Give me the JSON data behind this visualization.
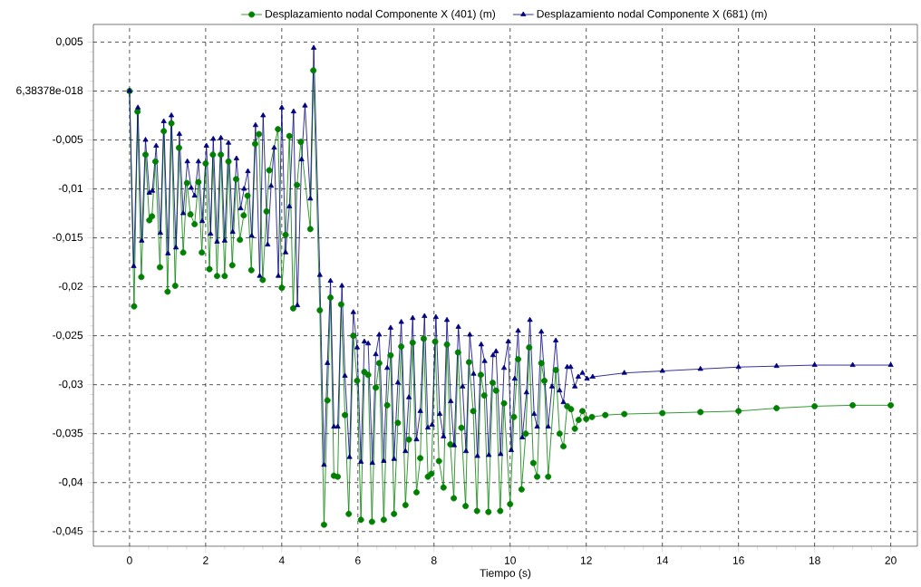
{
  "chart_data": {
    "type": "line",
    "xlabel": "Tiempo (s)",
    "xlim": [
      -0.95,
      20.7
    ],
    "ylim": [
      -0.0465,
      0.0068
    ],
    "xticks": [
      0,
      2,
      4,
      6,
      8,
      10,
      12,
      14,
      16,
      18,
      20
    ],
    "yticks": [
      {
        "value": 0.005,
        "label": "0,005"
      },
      {
        "value": 0,
        "label": "6,38378e-018"
      },
      {
        "value": -0.005,
        "label": "-0,005"
      },
      {
        "value": -0.01,
        "label": "-0,01"
      },
      {
        "value": -0.015,
        "label": "-0,015"
      },
      {
        "value": -0.02,
        "label": "-0,02"
      },
      {
        "value": -0.025,
        "label": "-0,025"
      },
      {
        "value": -0.03,
        "label": "-0,03"
      },
      {
        "value": -0.035,
        "label": "-0,035"
      },
      {
        "value": -0.04,
        "label": "-0,04"
      },
      {
        "value": -0.045,
        "label": "-0,045"
      }
    ],
    "grid": true,
    "legend": "top",
    "line_style": "solid",
    "series": [
      {
        "name": "Desplazamiento nodal Componente X (401) (m)",
        "color": "#008000",
        "marker": "circle",
        "x": [
          0,
          0.12,
          0.21,
          0.31,
          0.42,
          0.52,
          0.59,
          0.68,
          0.8,
          0.9,
          1.0,
          1.1,
          1.2,
          1.3,
          1.41,
          1.51,
          1.6,
          1.71,
          1.81,
          1.9,
          2.0,
          2.1,
          2.19,
          2.3,
          2.4,
          2.5,
          2.6,
          2.7,
          2.8,
          2.9,
          3.0,
          3.1,
          3.2,
          3.3,
          3.4,
          3.5,
          3.6,
          3.67,
          3.9,
          4.0,
          4.1,
          4.2,
          4.3,
          4.4,
          4.5,
          4.75,
          4.83,
          5.0,
          5.11,
          5.2,
          5.28,
          5.37,
          5.47,
          5.56,
          5.66,
          5.76,
          5.88,
          5.98,
          6.08,
          6.17,
          6.27,
          6.37,
          6.47,
          6.56,
          6.68,
          6.77,
          6.86,
          6.95,
          7.05,
          7.14,
          7.25,
          7.34,
          7.44,
          7.54,
          7.64,
          7.73,
          7.84,
          7.93,
          8.03,
          8.13,
          8.25,
          8.34,
          8.43,
          8.52,
          8.63,
          8.72,
          8.83,
          8.92,
          9.03,
          9.13,
          9.23,
          9.32,
          9.43,
          9.54,
          9.63,
          9.74,
          9.84,
          10.0,
          10.1,
          10.21,
          10.3,
          10.41,
          10.5,
          10.61,
          10.71,
          10.82,
          10.9,
          11.0,
          11.2,
          11.3,
          11.4,
          11.5,
          11.6,
          11.7,
          11.8,
          11.9,
          12.0,
          12.15,
          12.5,
          13,
          14,
          15,
          16,
          17,
          18,
          19,
          20
        ],
        "values": [
          0,
          -0.022,
          -0.0021,
          -0.019,
          -0.0065,
          -0.0132,
          -0.0128,
          -0.0072,
          -0.018,
          -0.0041,
          -0.0205,
          -0.0033,
          -0.0199,
          -0.0058,
          -0.0165,
          -0.0094,
          -0.0126,
          -0.0136,
          -0.0093,
          -0.0165,
          -0.0074,
          -0.0182,
          -0.0065,
          -0.0189,
          -0.0065,
          -0.0189,
          -0.0072,
          -0.0178,
          -0.009,
          -0.0152,
          -0.0127,
          -0.0107,
          -0.0183,
          -0.0054,
          -0.0044,
          -0.0193,
          -0.0123,
          -0.0081,
          -0.0039,
          -0.0201,
          -0.0147,
          -0.0046,
          -0.0222,
          -0.0096,
          -0.0052,
          -0.0141,
          0.0021,
          -0.0224,
          -0.0443,
          -0.0316,
          -0.0211,
          -0.0393,
          -0.0394,
          -0.0218,
          -0.0331,
          -0.0432,
          -0.025,
          -0.0296,
          -0.0438,
          -0.0287,
          -0.029,
          -0.044,
          -0.0303,
          -0.0278,
          -0.0438,
          -0.0321,
          -0.027,
          -0.0432,
          -0.0339,
          -0.0261,
          -0.0423,
          -0.0356,
          -0.0257,
          -0.041,
          -0.0375,
          -0.0253,
          -0.0394,
          -0.0391,
          -0.0256,
          -0.0378,
          -0.0405,
          -0.0259,
          -0.0361,
          -0.0416,
          -0.0267,
          -0.0344,
          -0.0424,
          -0.0277,
          -0.0327,
          -0.0429,
          -0.029,
          -0.0311,
          -0.043,
          -0.0298,
          -0.0306,
          -0.0429,
          -0.0319,
          -0.0422,
          -0.0333,
          -0.0274,
          -0.0407,
          -0.035,
          -0.0262,
          -0.038,
          -0.0394,
          -0.0278,
          -0.0296,
          -0.0394,
          -0.0285,
          -0.035,
          -0.0363,
          -0.0322,
          -0.0325,
          -0.0345,
          -0.0336,
          -0.0327,
          -0.0335,
          -0.0333,
          -0.0331,
          -0.033,
          -0.0329,
          -0.0328,
          -0.0327,
          -0.0324,
          -0.0322,
          -0.0321,
          -0.0321
        ]
      },
      {
        "name": "Desplazamiento nodal Componente X (681) (m)",
        "color": "#000080",
        "marker": "triangle",
        "x": [
          0,
          0.11,
          0.22,
          0.32,
          0.42,
          0.52,
          0.6,
          0.7,
          0.81,
          0.9,
          1.01,
          1.1,
          1.22,
          1.31,
          1.41,
          1.52,
          1.62,
          1.71,
          1.81,
          1.91,
          2.02,
          2.13,
          2.2,
          2.3,
          2.4,
          2.5,
          2.6,
          2.71,
          2.81,
          2.92,
          3.01,
          3.11,
          3.21,
          3.31,
          3.42,
          3.51,
          3.63,
          3.72,
          3.8,
          3.91,
          4.0,
          4.1,
          4.2,
          4.31,
          4.41,
          4.52,
          4.61,
          4.75,
          4.84,
          5.0,
          5.11,
          5.2,
          5.28,
          5.37,
          5.47,
          5.58,
          5.66,
          5.78,
          5.88,
          5.98,
          6.08,
          6.17,
          6.27,
          6.38,
          6.47,
          6.56,
          6.68,
          6.77,
          6.86,
          6.95,
          7.05,
          7.14,
          7.25,
          7.34,
          7.44,
          7.54,
          7.64,
          7.75,
          7.84,
          7.95,
          8.05,
          8.15,
          8.25,
          8.34,
          8.44,
          8.53,
          8.64,
          8.75,
          8.84,
          8.94,
          9.04,
          9.14,
          9.24,
          9.33,
          9.44,
          9.55,
          9.63,
          9.75,
          9.84,
          9.95,
          10.03,
          10.12,
          10.21,
          10.32,
          10.43,
          10.52,
          10.63,
          10.71,
          10.82,
          11.0,
          11.1,
          11.2,
          11.3,
          11.4,
          11.5,
          11.59,
          11.7,
          11.79,
          11.9,
          12.02,
          12.17,
          13,
          14,
          15,
          16,
          17,
          18,
          19,
          20
        ],
        "values": [
          0,
          -0.0179,
          -0.0017,
          -0.0153,
          -0.005,
          -0.0104,
          -0.0102,
          -0.0056,
          -0.0145,
          -0.0031,
          -0.0166,
          -0.0025,
          -0.016,
          -0.0044,
          -0.0125,
          -0.0072,
          -0.0099,
          -0.0107,
          -0.0072,
          -0.0133,
          -0.0056,
          -0.0146,
          -0.0049,
          -0.0154,
          -0.0048,
          -0.0153,
          -0.0053,
          -0.0144,
          -0.0069,
          -0.012,
          -0.01,
          -0.0082,
          -0.0148,
          -0.0035,
          -0.0189,
          -0.0025,
          -0.0157,
          -0.0097,
          -0.0058,
          -0.0189,
          -0.0017,
          -0.0165,
          -0.0118,
          -0.0021,
          -0.0219,
          -0.007,
          -0.0015,
          -0.011,
          0.0044,
          -0.0188,
          -0.0382,
          -0.0278,
          -0.0194,
          -0.0343,
          -0.0343,
          -0.0199,
          -0.0291,
          -0.0374,
          -0.0226,
          -0.0262,
          -0.0379,
          -0.0256,
          -0.0258,
          -0.038,
          -0.0269,
          -0.0249,
          -0.0378,
          -0.0283,
          -0.0242,
          -0.0376,
          -0.0298,
          -0.0236,
          -0.0368,
          -0.0313,
          -0.0232,
          -0.0356,
          -0.0327,
          -0.023,
          -0.0344,
          -0.0341,
          -0.0231,
          -0.033,
          -0.0353,
          -0.0234,
          -0.0317,
          -0.0362,
          -0.0241,
          -0.0302,
          -0.0368,
          -0.0249,
          -0.0289,
          -0.0373,
          -0.0259,
          -0.0276,
          -0.0372,
          -0.027,
          -0.0266,
          -0.0371,
          -0.0283,
          -0.0256,
          -0.0367,
          -0.0294,
          -0.0245,
          -0.0354,
          -0.0308,
          -0.0234,
          -0.033,
          -0.0343,
          -0.0246,
          -0.0343,
          -0.0302,
          -0.0255,
          -0.0306,
          -0.0318,
          -0.0282,
          -0.0282,
          -0.0302,
          -0.0292,
          -0.0288,
          -0.0294,
          -0.0292,
          -0.0288,
          -0.0286,
          -0.0284,
          -0.0282,
          -0.0281,
          -0.028,
          -0.028,
          -0.028
        ]
      }
    ]
  }
}
